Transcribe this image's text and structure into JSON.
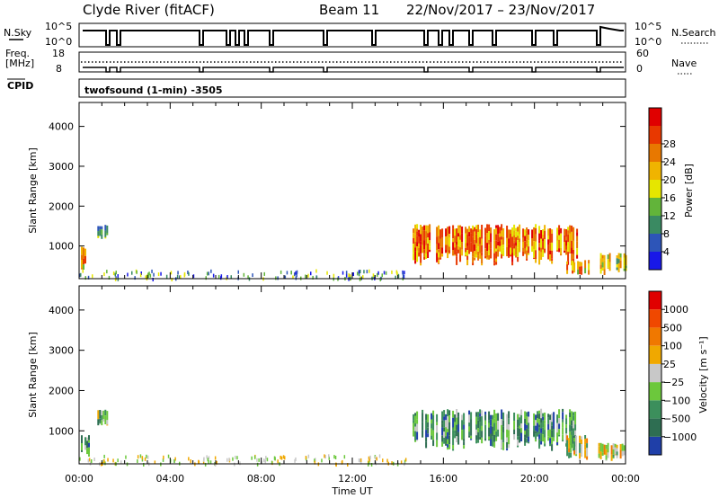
{
  "header": {
    "station": "Clyde River (fitACF)",
    "beam": "Beam 11",
    "dates": "22/Nov/2017 – 23/Nov/2017"
  },
  "status": {
    "nsky_label": "N.Sky",
    "nsky_ticks": [
      "10^5",
      "10^0"
    ],
    "nsearch_label": "N.Search",
    "nsearch_ticks": [
      "10^5",
      "10^0"
    ],
    "freq_label_1": "Freq.",
    "freq_label_2": "[MHz]",
    "freq_ticks": [
      "18",
      "8"
    ],
    "nave_label": "Nave",
    "nave_ticks": [
      "60",
      "0"
    ],
    "cpid_label": "CPID",
    "cpid_value": "twofsound (1-min) -3505"
  },
  "chart_data": [
    {
      "type": "heatmap",
      "name": "power-panel",
      "ylabel": "Slant Range [km]",
      "ylim": [
        180,
        4600
      ],
      "yticks": [
        "1000",
        "2000",
        "3000",
        "4000"
      ],
      "xlabel": "Time UT",
      "xticks": [
        "00:00",
        "04:00",
        "08:00",
        "12:00",
        "16:00",
        "20:00",
        "00:00"
      ],
      "colorbar": {
        "label": "Power [dB]",
        "ticks": [
          "4",
          "8",
          "12",
          "16",
          "20",
          "24",
          "28"
        ],
        "colors": [
          "#1818e8",
          "#2d55b8",
          "#3a8a62",
          "#62b43a",
          "#e6e600",
          "#f0b400",
          "#e87800",
          "#e83800",
          "#e00000"
        ]
      },
      "regions": [
        {
          "t0": 0.0,
          "t1": 0.3,
          "r0": 350,
          "r1": 1000,
          "level": 5
        },
        {
          "t0": 0.8,
          "t1": 1.25,
          "r0": 1150,
          "r1": 1550,
          "level": 2
        },
        {
          "t0": 14.65,
          "t1": 21.9,
          "r0": 500,
          "r1": 1550,
          "level": 6
        },
        {
          "t0": 21.4,
          "t1": 22.4,
          "r0": 180,
          "r1": 650,
          "level": 5
        },
        {
          "t0": 22.8,
          "t1": 24.0,
          "r0": 250,
          "r1": 850,
          "level": 4
        }
      ]
    },
    {
      "type": "heatmap",
      "name": "velocity-panel",
      "ylabel": "Slant Range [km]",
      "ylim": [
        180,
        4600
      ],
      "yticks": [
        "1000",
        "2000",
        "3000",
        "4000"
      ],
      "xlabel": "Time UT",
      "xticks": [
        "00:00",
        "04:00",
        "08:00",
        "12:00",
        "16:00",
        "20:00",
        "00:00"
      ],
      "colorbar": {
        "label": "Velocity [m s⁻¹]",
        "ticks": [
          "1000",
          "500",
          "100",
          "25",
          "−25",
          "−100",
          "−500",
          "−1000"
        ],
        "colors": [
          "#1f3fa8",
          "#2e6e52",
          "#3c8f5c",
          "#6cc83c",
          "#c8c8c8",
          "#f0a800",
          "#f07800",
          "#f04800",
          "#e00000"
        ]
      },
      "regions": [
        {
          "t0": 0.0,
          "t1": 0.4,
          "r0": 350,
          "r1": 900,
          "level": 2
        },
        {
          "t0": 0.8,
          "t1": 1.25,
          "r0": 1100,
          "r1": 1550,
          "level": 3
        },
        {
          "t0": 14.65,
          "t1": 21.9,
          "r0": 500,
          "r1": 1550,
          "level": 2
        },
        {
          "t0": 21.4,
          "t1": 22.4,
          "r0": 180,
          "r1": 900,
          "level": 4
        },
        {
          "t0": 22.8,
          "t1": 24.0,
          "r0": 250,
          "r1": 700,
          "level": 4
        }
      ]
    }
  ]
}
